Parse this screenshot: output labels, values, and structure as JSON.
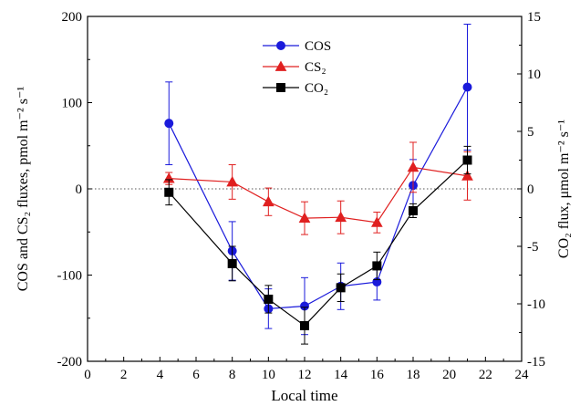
{
  "chart_data": {
    "type": "line",
    "xlabel": "Local time",
    "ylabel_left": "COS and CS₂ fluxes, pmol m⁻² s⁻¹",
    "ylabel_right": "CO₂ flux, μmol m⁻² s⁻¹",
    "xlim": [
      0,
      24
    ],
    "ylim_left": [
      -200,
      200
    ],
    "ylim_right": [
      -15,
      15
    ],
    "x_ticks": [
      "0",
      "2",
      "4",
      "6",
      "8",
      "10",
      "12",
      "14",
      "16",
      "18",
      "20",
      "22",
      "24"
    ],
    "y_left_ticks": [
      "-200",
      "-100",
      "0",
      "100",
      "200"
    ],
    "y_right_ticks": [
      "-15",
      "-10",
      "-5",
      "0",
      "5",
      "10",
      "15"
    ],
    "zero_reference_line": true,
    "grid": false,
    "legend_position": "top-center",
    "series": [
      {
        "name": "COS",
        "axis": "left",
        "color": "#1a1adb",
        "marker": "circle",
        "x": [
          4.5,
          8,
          10,
          12,
          14,
          16,
          18,
          21
        ],
        "y": [
          76,
          -72,
          -139,
          -136,
          -113,
          -108,
          4,
          118
        ],
        "err": [
          48,
          34,
          23,
          33,
          27,
          21,
          30,
          73
        ]
      },
      {
        "name": "CS₂",
        "axis": "left",
        "color": "#e02020",
        "marker": "triangle",
        "x": [
          4.5,
          8,
          10,
          12,
          14,
          16,
          18,
          21
        ],
        "y": [
          12,
          8,
          -15,
          -34,
          -33,
          -39,
          25,
          15
        ],
        "err": [
          7,
          20,
          16,
          19,
          19,
          12,
          29,
          28
        ]
      },
      {
        "name": "CO₂",
        "axis": "right",
        "color": "#000000",
        "marker": "square",
        "x": [
          4.5,
          8,
          10,
          12,
          14,
          16,
          18,
          21
        ],
        "y": [
          -0.3,
          -6.5,
          -9.6,
          -11.9,
          -8.6,
          -6.7,
          -1.9,
          2.5
        ],
        "err": [
          1.1,
          1.5,
          1.2,
          1.6,
          1.2,
          1.2,
          0.6,
          1.2
        ]
      }
    ]
  }
}
